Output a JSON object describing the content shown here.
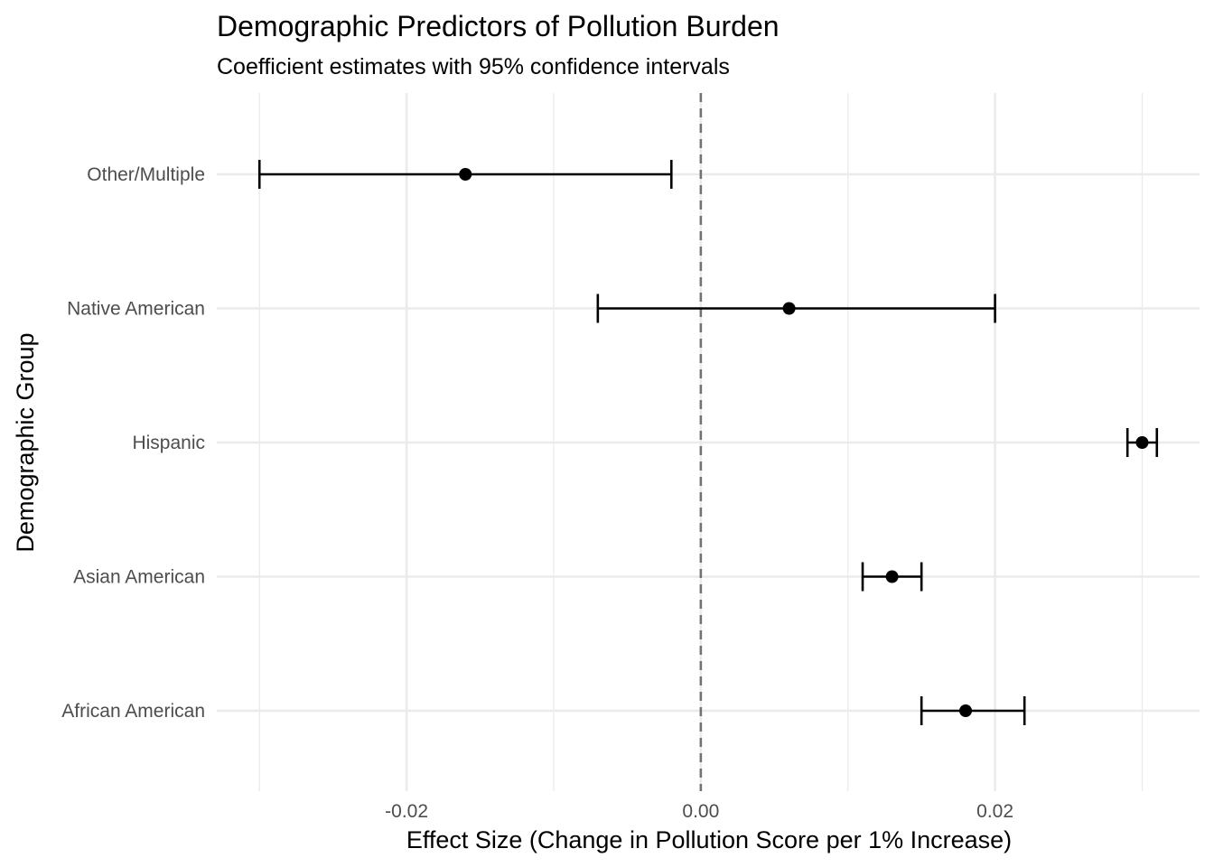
{
  "chart_data": {
    "type": "errorbar",
    "title": "Demographic Predictors of Pollution Burden",
    "subtitle": "Coefficient estimates with 95% confidence intervals",
    "xlabel": "Effect Size (Change in Pollution Score per 1% Increase)",
    "ylabel": "Demographic Group",
    "xlim": [
      -0.0329,
      0.0339
    ],
    "x_ticks": [
      {
        "value": -0.02,
        "label": "-0.02"
      },
      {
        "value": 0.0,
        "label": "0.00"
      },
      {
        "value": 0.02,
        "label": "0.02"
      }
    ],
    "x_minor_ticks": [
      -0.03,
      -0.01,
      0.01,
      0.03
    ],
    "reference_line": {
      "x": 0,
      "style": "dashed"
    },
    "grid": true,
    "categories": [
      "African American",
      "Asian American",
      "Hispanic",
      "Native American",
      "Other/Multiple"
    ],
    "estimates": [
      0.018,
      0.013,
      0.03,
      0.006,
      -0.016
    ],
    "ci_lower": [
      0.015,
      0.011,
      0.029,
      -0.007,
      -0.03
    ],
    "ci_upper": [
      0.022,
      0.015,
      0.031,
      0.02,
      -0.002
    ]
  }
}
